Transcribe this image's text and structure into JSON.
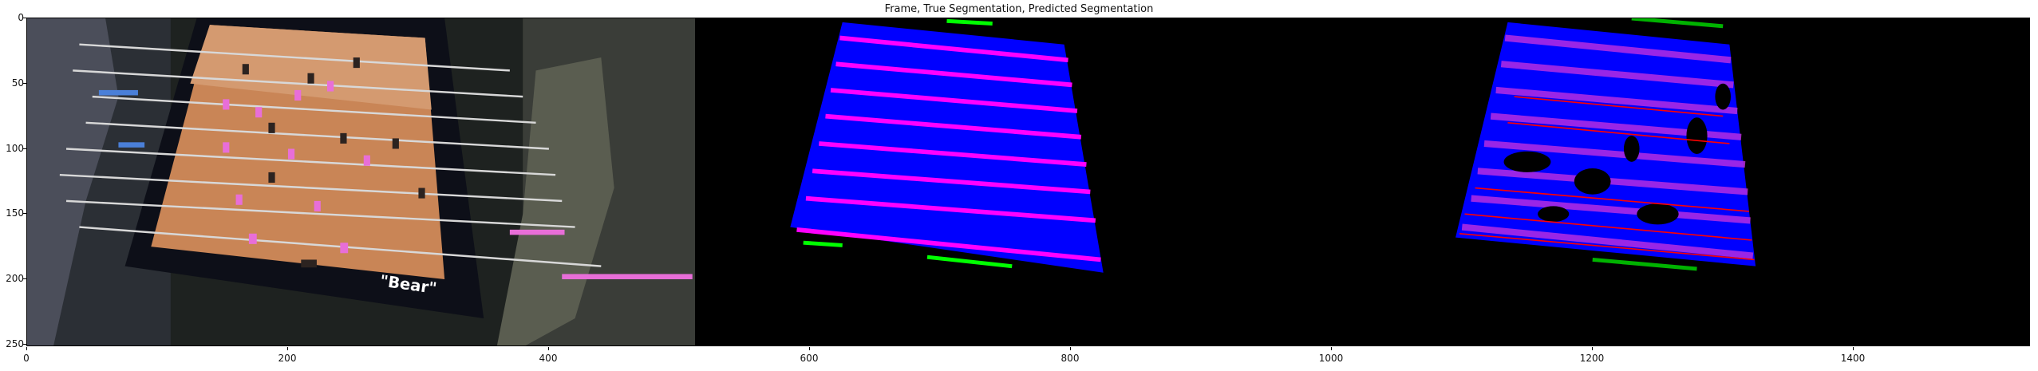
{
  "figure": {
    "title": "Frame, True Segmentation, Predicted Segmentation",
    "x_ticks": [
      "0",
      "200",
      "400",
      "600",
      "800",
      "1000",
      "1200",
      "1400"
    ],
    "y_ticks": [
      "0",
      "50",
      "100",
      "150",
      "200",
      "250"
    ],
    "logo_text": "\"Bear\""
  },
  "panels": [
    {
      "name": "frame",
      "description_hidden": true
    },
    {
      "name": "true-segmentation"
    },
    {
      "name": "predicted-segmentation"
    }
  ],
  "colors": {
    "background": "#000000",
    "table_blue": "#0000ff",
    "rod_magenta": "#ff00ff",
    "ball_green": "#00ff00",
    "red_outline": "#ff0000"
  }
}
